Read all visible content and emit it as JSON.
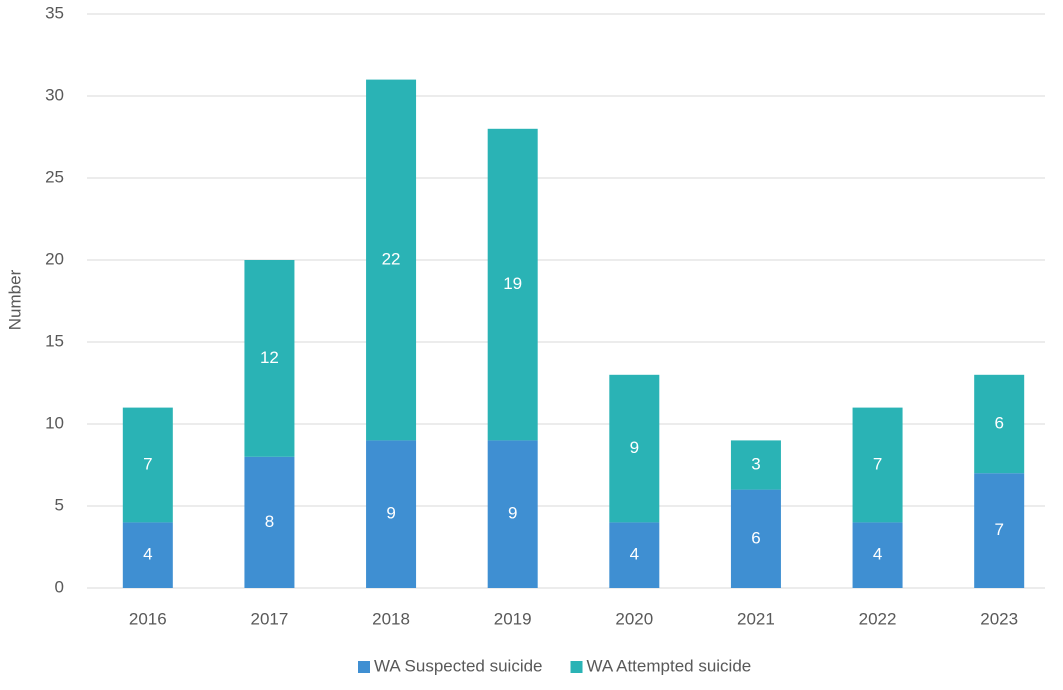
{
  "chart_data": {
    "type": "stacked_bar",
    "y_label": "Number",
    "categories": [
      "2016",
      "2017",
      "2018",
      "2019",
      "2020",
      "2021",
      "2022",
      "2023"
    ],
    "series": [
      {
        "name": "WA Suspected suicide",
        "color": "#3f8fd2",
        "values": [
          4,
          8,
          9,
          9,
          4,
          6,
          4,
          7
        ]
      },
      {
        "name": "WA Attempted suicide",
        "color": "#2ab3b5",
        "values": [
          7,
          12,
          22,
          19,
          9,
          3,
          7,
          6
        ]
      }
    ],
    "ylim": [
      0,
      35
    ],
    "yticks": [
      0,
      5,
      10,
      15,
      20,
      25,
      30,
      35
    ],
    "grid": true,
    "legend": "bottom"
  }
}
